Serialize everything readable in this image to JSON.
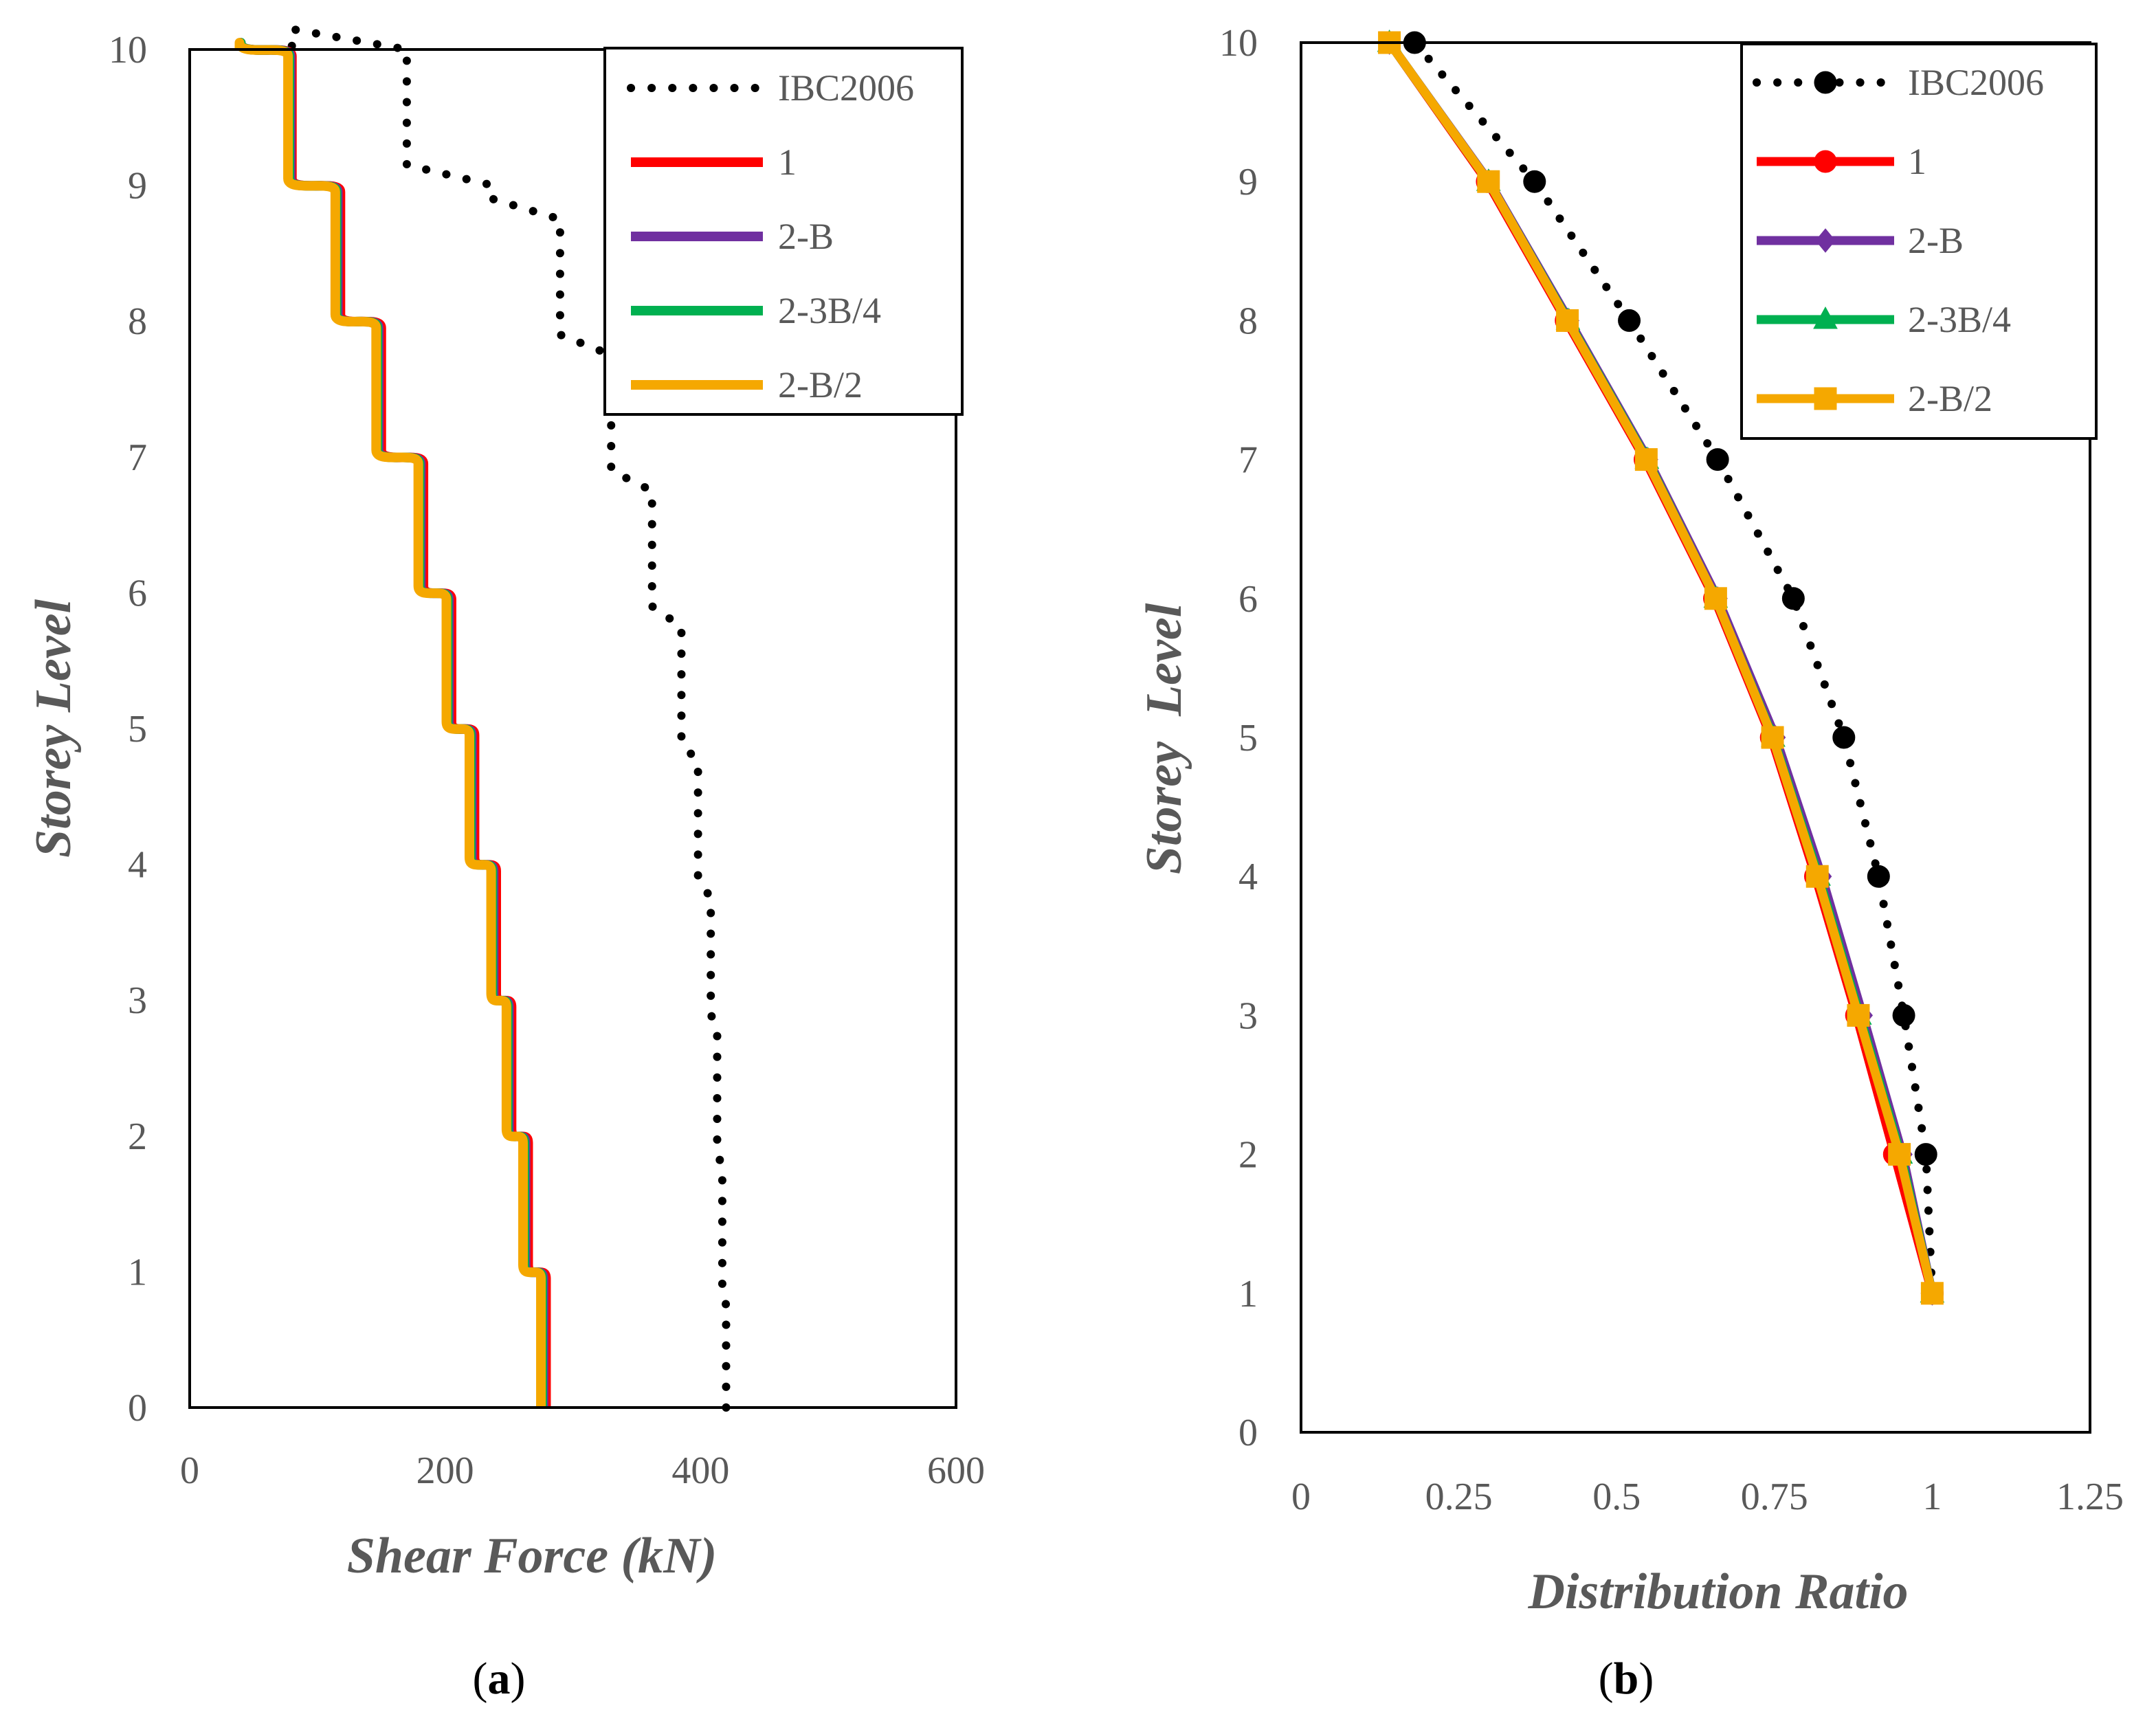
{
  "series_colors": {
    "IBC2006": "#000000",
    "1": "#ff0000",
    "2-B": "#7030a0",
    "2-3B/4": "#00b050",
    "2-B/2": "#f5a800"
  },
  "chart_data": [
    {
      "type": "line",
      "panel": "(a)",
      "panel_open": "(",
      "panel_letter": "a",
      "panel_close": ")",
      "xlabel": "Shear Force (kN)",
      "ylabel": "Storey Level",
      "xlim": [
        0,
        600
      ],
      "ylim": [
        0,
        10
      ],
      "xticks": [
        0,
        200,
        400,
        600
      ],
      "yticks": [
        0,
        1,
        2,
        3,
        4,
        5,
        6,
        7,
        8,
        9,
        10
      ],
      "legend": [
        "IBC2006",
        "1",
        "2-B",
        "2-3B/4",
        "2-B/2"
      ],
      "legend_position": "top-right",
      "series": [
        {
          "name": "IBC2006",
          "style": "dotted",
          "step_values": [
            420,
            417,
            413,
            408,
            398,
            385,
            362,
            330,
            290,
            237,
            170,
            80
          ]
        },
        {
          "name": "1",
          "step_values": [
            279,
            265,
            252,
            240,
            223,
            205,
            183,
            150,
            118,
            80,
            40
          ]
        },
        {
          "name": "2-B",
          "step_values": [
            277,
            263,
            250,
            238,
            221,
            203,
            181,
            148,
            116,
            79,
            40
          ]
        },
        {
          "name": "2-3B/4",
          "step_values": [
            276,
            262,
            249,
            237,
            220,
            202,
            180,
            147,
            115,
            78,
            40
          ]
        },
        {
          "name": "2-B/2",
          "step_values": [
            275,
            261,
            248,
            236,
            219,
            201,
            179,
            146,
            114,
            77,
            39
          ]
        }
      ]
    },
    {
      "type": "line",
      "panel": "(b)",
      "panel_open": "(",
      "panel_letter": "b",
      "panel_close": ")",
      "xlabel": "Distribution Ratio",
      "ylabel": "Storey  Level",
      "xlim": [
        0,
        1.25
      ],
      "ylim": [
        0,
        10
      ],
      "xticks": [
        0,
        0.25,
        0.5,
        0.75,
        1,
        1.25
      ],
      "yticks": [
        0,
        1,
        2,
        3,
        4,
        5,
        6,
        7,
        8,
        9,
        10
      ],
      "legend": [
        "IBC2006",
        "1",
        "2-B",
        "2-3B/4",
        "2-B/2"
      ],
      "legend_position": "top-right",
      "series": [
        {
          "name": "IBC2006",
          "style": "dotted",
          "marker": "circle",
          "x": [
            1.0,
            0.99,
            0.955,
            0.915,
            0.86,
            0.78,
            0.66,
            0.52,
            0.37,
            0.18
          ],
          "y": [
            1,
            2,
            3,
            4,
            5,
            6,
            7,
            8,
            9,
            10
          ]
        },
        {
          "name": "1",
          "marker": "circle",
          "x": [
            1.0,
            0.94,
            0.88,
            0.815,
            0.745,
            0.655,
            0.545,
            0.42,
            0.295,
            0.14
          ],
          "y": [
            1,
            2,
            3,
            4,
            5,
            6,
            7,
            8,
            9,
            10
          ]
        },
        {
          "name": "2-B",
          "marker": "diamond",
          "x": [
            1.0,
            0.953,
            0.89,
            0.825,
            0.752,
            0.66,
            0.55,
            0.425,
            0.298,
            0.14
          ],
          "y": [
            1,
            2,
            3,
            4,
            5,
            6,
            7,
            8,
            9,
            10
          ]
        },
        {
          "name": "2-3B/4",
          "marker": "triangle",
          "x": [
            1.0,
            0.95,
            0.885,
            0.82,
            0.748,
            0.657,
            0.548,
            0.423,
            0.297,
            0.14
          ],
          "y": [
            1,
            2,
            3,
            4,
            5,
            6,
            7,
            8,
            9,
            10
          ]
        },
        {
          "name": "2-B/2",
          "marker": "square",
          "x": [
            1.0,
            0.948,
            0.883,
            0.818,
            0.747,
            0.657,
            0.547,
            0.422,
            0.297,
            0.14
          ],
          "y": [
            1,
            2,
            3,
            4,
            5,
            6,
            7,
            8,
            9,
            10
          ]
        }
      ]
    }
  ]
}
